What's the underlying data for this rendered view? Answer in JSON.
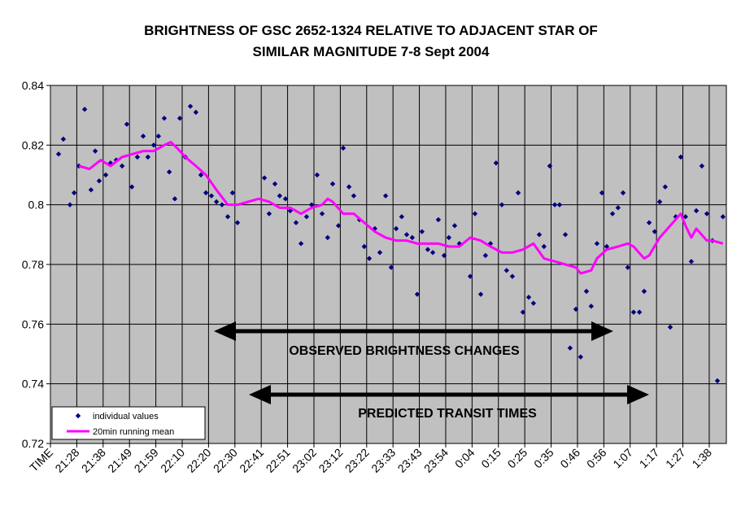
{
  "chart_data": {
    "type": "scatter",
    "title": [
      "BRIGHTNESS OF GSC 2652-1324 RELATIVE TO  ADJACENT STAR OF",
      "SIMILAR MAGNITUDE  7-8 Sept 2004"
    ],
    "annotations": [
      "OBSERVED BRIGHTNESS CHANGES",
      "PREDICTED TRANSIT TIMES"
    ],
    "xlim": [
      0,
      25.65
    ],
    "xticks": [
      {
        "value": 0,
        "label": "TIME"
      },
      {
        "value": 1,
        "label": "21:28"
      },
      {
        "value": 2,
        "label": "21:38"
      },
      {
        "value": 3,
        "label": "21:49"
      },
      {
        "value": 4,
        "label": "21:59"
      },
      {
        "value": 5,
        "label": "22:10"
      },
      {
        "value": 6,
        "label": "22:20"
      },
      {
        "value": 7,
        "label": "22:30"
      },
      {
        "value": 8,
        "label": "22:41"
      },
      {
        "value": 9,
        "label": "22:51"
      },
      {
        "value": 10,
        "label": "23:02"
      },
      {
        "value": 11,
        "label": "23:12"
      },
      {
        "value": 12,
        "label": "23:22"
      },
      {
        "value": 13,
        "label": "23:33"
      },
      {
        "value": 14,
        "label": "23:43"
      },
      {
        "value": 15,
        "label": "23:54"
      },
      {
        "value": 16,
        "label": "0:04"
      },
      {
        "value": 17,
        "label": "0:15"
      },
      {
        "value": 18,
        "label": "0:25"
      },
      {
        "value": 19,
        "label": "0:35"
      },
      {
        "value": 20,
        "label": "0:46"
      },
      {
        "value": 21,
        "label": "0:56"
      },
      {
        "value": 22,
        "label": "1:07"
      },
      {
        "value": 23,
        "label": "1:17"
      },
      {
        "value": 24,
        "label": "1:27"
      },
      {
        "value": 25,
        "label": "1:38"
      }
    ],
    "ylim": [
      0.72,
      0.84
    ],
    "yticks": [
      0.72,
      0.74,
      0.76,
      0.78,
      0.8,
      0.82,
      0.84
    ],
    "grid": true,
    "legend": "lower left",
    "series": [
      {
        "name": "individual values",
        "color": "#000080",
        "mark": "diamond",
        "x": [
          0.31,
          0.49,
          0.74,
          0.9,
          1.08,
          1.3,
          1.54,
          1.7,
          1.85,
          2.1,
          2.28,
          2.5,
          2.72,
          2.9,
          3.09,
          3.3,
          3.52,
          3.7,
          3.92,
          4.1,
          4.32,
          4.51,
          4.72,
          4.91,
          5.12,
          5.31,
          5.52,
          5.71,
          5.9,
          6.11,
          6.3,
          6.51,
          6.73,
          6.91,
          7.1,
          8.12,
          8.3,
          8.52,
          8.7,
          8.92,
          9.1,
          9.32,
          9.51,
          9.72,
          9.91,
          10.12,
          10.31,
          10.52,
          10.71,
          10.93,
          11.11,
          11.33,
          11.51,
          11.73,
          11.91,
          12.1,
          12.31,
          12.5,
          12.72,
          12.93,
          13.12,
          13.33,
          13.52,
          13.73,
          13.92,
          14.1,
          14.32,
          14.51,
          14.72,
          14.94,
          15.12,
          15.34,
          15.52,
          15.93,
          16.11,
          16.33,
          16.51,
          16.7,
          16.91,
          17.13,
          17.31,
          17.53,
          17.75,
          17.93,
          18.15,
          18.33,
          18.55,
          18.73,
          18.95,
          19.14,
          19.32,
          19.54,
          19.72,
          19.94,
          20.12,
          20.34,
          20.52,
          20.74,
          20.93,
          21.11,
          21.33,
          21.54,
          21.73,
          21.91,
          22.13,
          22.35,
          22.53,
          22.72,
          22.93,
          23.12,
          23.33,
          23.52,
          23.73,
          23.92,
          24.1,
          24.32,
          24.51,
          24.72,
          24.91,
          25.12,
          25.31,
          25.52
        ],
        "values": [
          0.817,
          0.822,
          0.8,
          0.804,
          0.813,
          0.832,
          0.805,
          0.818,
          0.808,
          0.81,
          0.814,
          0.815,
          0.813,
          0.827,
          0.806,
          0.816,
          0.823,
          0.816,
          0.82,
          0.823,
          0.829,
          0.811,
          0.802,
          0.829,
          0.816,
          0.833,
          0.831,
          0.81,
          0.804,
          0.803,
          0.801,
          0.8,
          0.796,
          0.804,
          0.794,
          0.809,
          0.797,
          0.807,
          0.803,
          0.802,
          0.798,
          0.794,
          0.787,
          0.796,
          0.8,
          0.81,
          0.797,
          0.789,
          0.807,
          0.793,
          0.819,
          0.806,
          0.803,
          0.795,
          0.786,
          0.782,
          0.792,
          0.784,
          0.803,
          0.779,
          0.792,
          0.796,
          0.79,
          0.789,
          0.77,
          0.791,
          0.785,
          0.784,
          0.795,
          0.783,
          0.789,
          0.793,
          0.787,
          0.776,
          0.797,
          0.77,
          0.783,
          0.787,
          0.814,
          0.8,
          0.778,
          0.776,
          0.804,
          0.764,
          0.769,
          0.767,
          0.79,
          0.786,
          0.813,
          0.8,
          0.8,
          0.79,
          0.752,
          0.765,
          0.749,
          0.771,
          0.766,
          0.787,
          0.804,
          0.786,
          0.797,
          0.799,
          0.804,
          0.779,
          0.764,
          0.764,
          0.771,
          0.794,
          0.791,
          0.801,
          0.806,
          0.759,
          0.796,
          0.816,
          0.796,
          0.781,
          0.798,
          0.813,
          0.797,
          0.788,
          0.741,
          0.796
        ]
      },
      {
        "name": "20min running mean",
        "color": "#ff00ff",
        "mark": "line",
        "x": [
          1.08,
          1.48,
          1.91,
          2.28,
          2.72,
          3.12,
          3.52,
          3.92,
          4.32,
          4.57,
          4.81,
          5.12,
          5.52,
          5.9,
          6.3,
          6.73,
          7.1,
          7.5,
          7.9,
          8.3,
          8.7,
          9.1,
          9.51,
          9.91,
          10.31,
          10.52,
          10.71,
          11.11,
          11.51,
          11.91,
          12.31,
          12.72,
          13.12,
          13.52,
          13.92,
          14.32,
          14.72,
          15.12,
          15.52,
          15.93,
          16.33,
          16.7,
          17.13,
          17.53,
          17.93,
          18.33,
          18.73,
          19.14,
          19.54,
          19.94,
          20.12,
          20.52,
          20.74,
          21.11,
          21.54,
          21.91,
          22.13,
          22.53,
          22.72,
          23.12,
          23.52,
          23.92,
          24.1,
          24.32,
          24.51,
          24.91,
          25.12,
          25.52
        ],
        "values": [
          0.813,
          0.812,
          0.815,
          0.813,
          0.816,
          0.817,
          0.818,
          0.818,
          0.82,
          0.821,
          0.819,
          0.816,
          0.813,
          0.81,
          0.805,
          0.8,
          0.8,
          0.801,
          0.802,
          0.801,
          0.799,
          0.799,
          0.797,
          0.799,
          0.8,
          0.802,
          0.801,
          0.797,
          0.797,
          0.794,
          0.791,
          0.789,
          0.788,
          0.788,
          0.787,
          0.787,
          0.787,
          0.786,
          0.786,
          0.789,
          0.788,
          0.786,
          0.784,
          0.784,
          0.785,
          0.787,
          0.782,
          0.781,
          0.78,
          0.779,
          0.777,
          0.778,
          0.782,
          0.785,
          0.786,
          0.787,
          0.786,
          0.782,
          0.783,
          0.789,
          0.793,
          0.797,
          0.793,
          0.789,
          0.792,
          0.788,
          0.788,
          0.787
        ]
      }
    ]
  }
}
